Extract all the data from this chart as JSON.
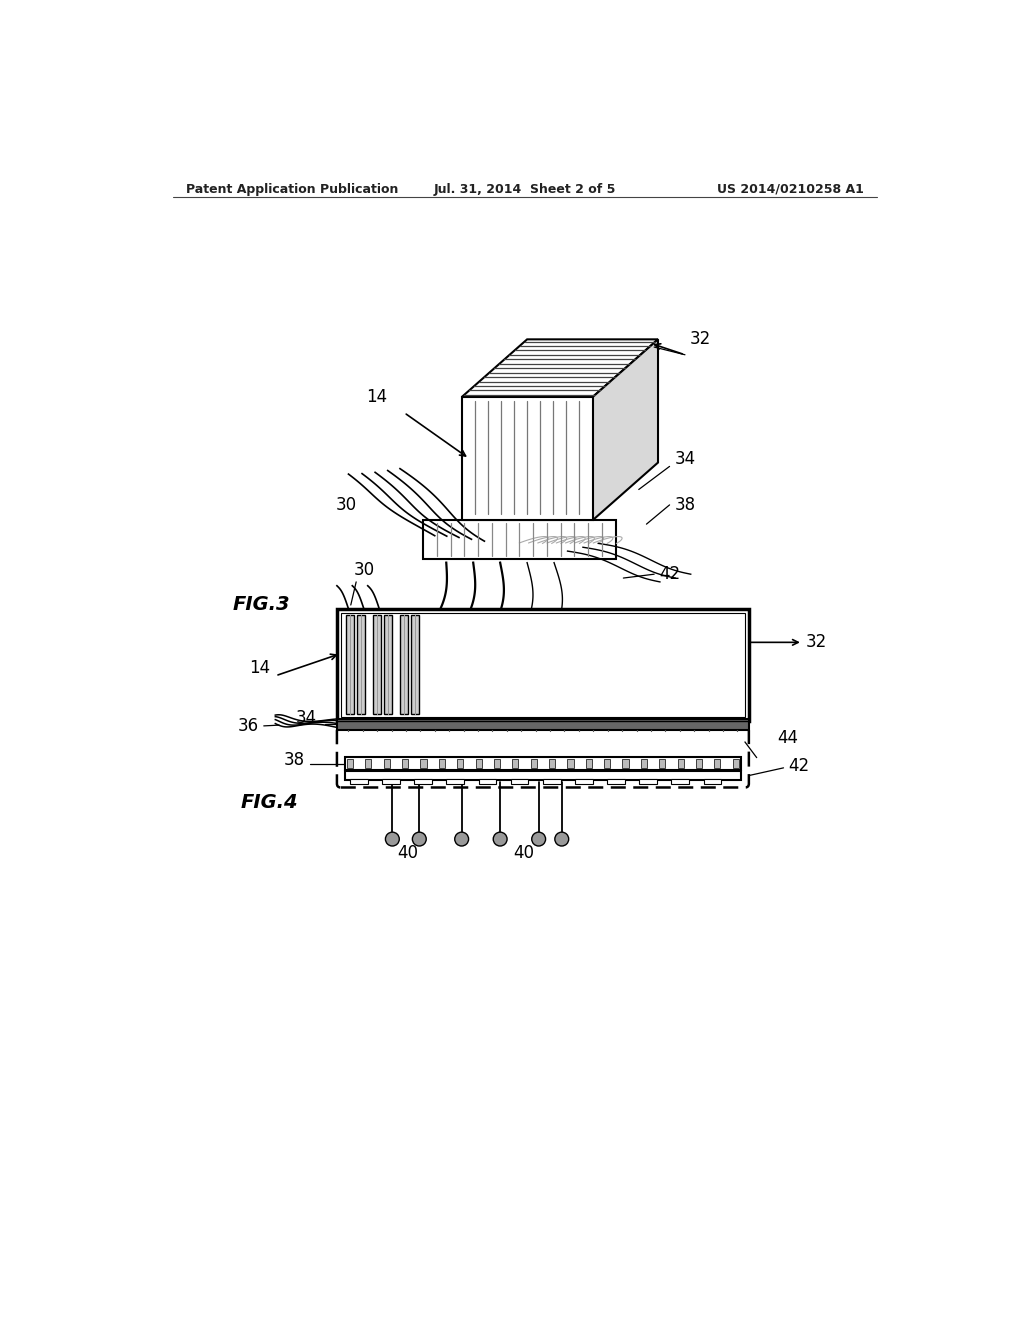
{
  "background_color": "#ffffff",
  "header_left": "Patent Application Publication",
  "header_mid": "Jul. 31, 2014  Sheet 2 of 5",
  "header_right": "US 2014/0210258 A1",
  "fig3_label": "FIG.3",
  "fig4_label": "FIG.4"
}
